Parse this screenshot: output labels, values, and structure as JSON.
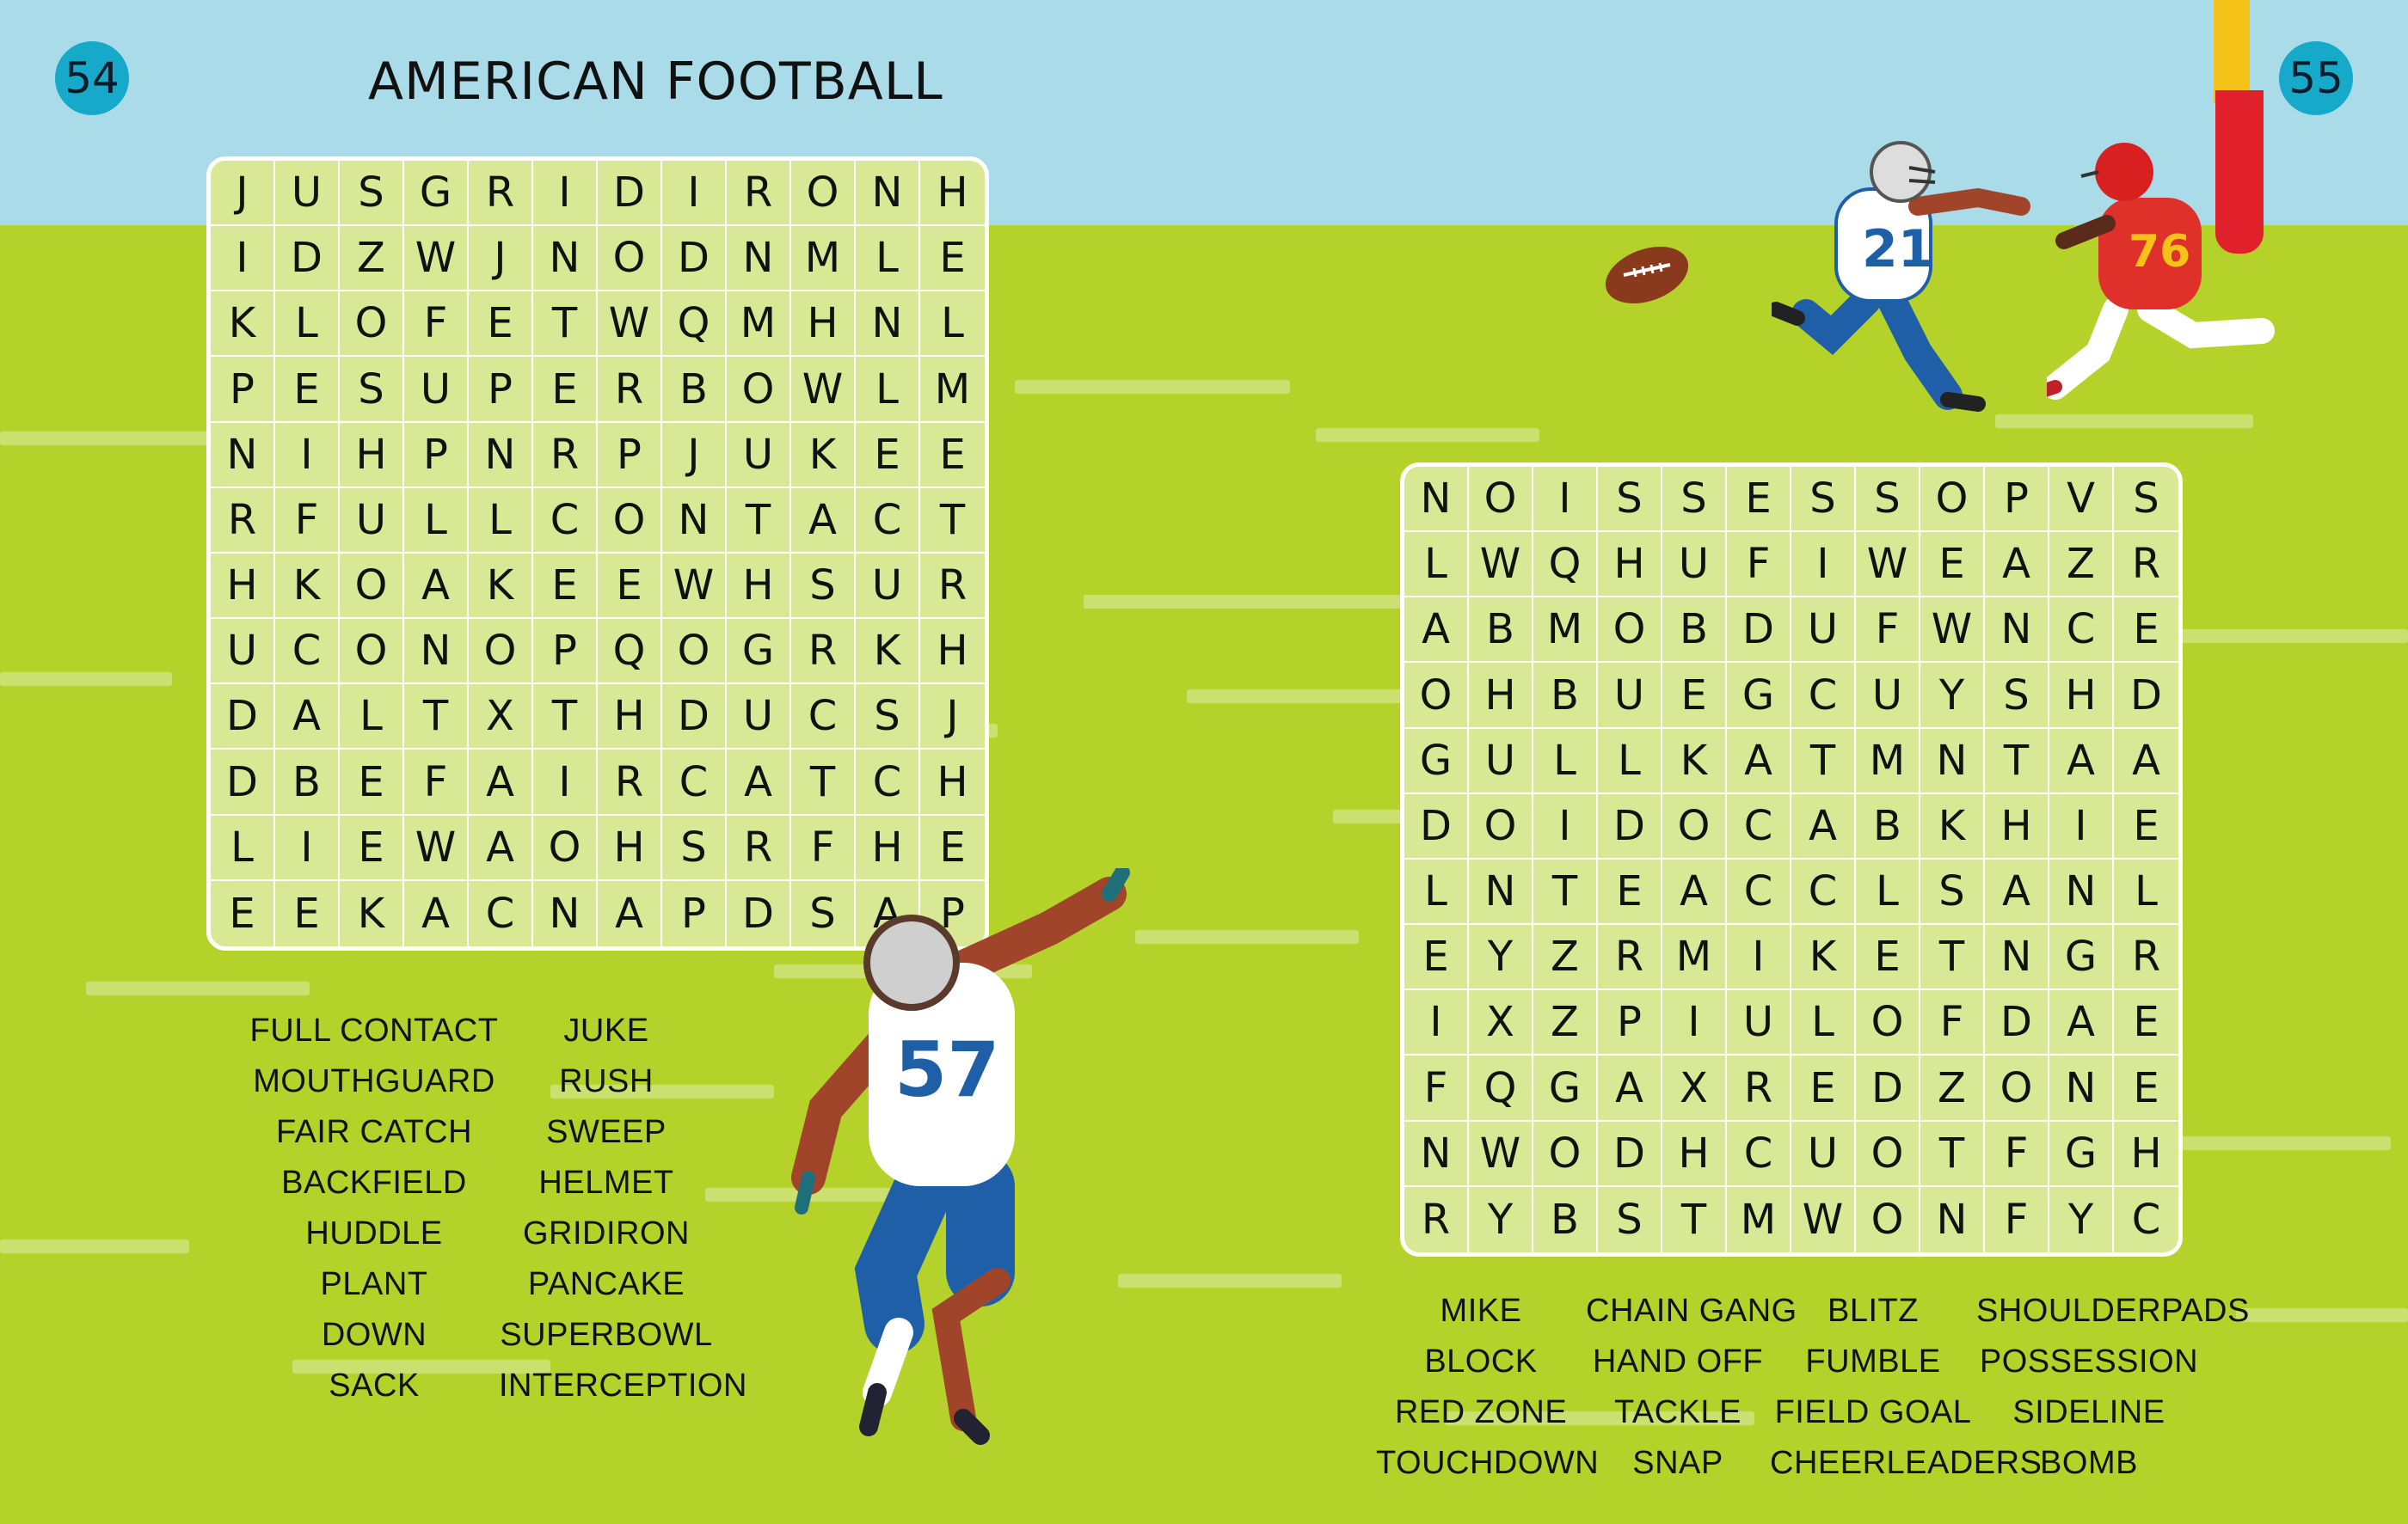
{
  "page_left": {
    "number": "54",
    "title": "AMERICAN FOOTBALL",
    "grid": [
      "JUSGRIDIRONH",
      "IDZWJNODNMLE",
      "KLOFETWQMHNL",
      "PESUPERBOWLM",
      "NIHPNRPJUKEE",
      "RFULLCONTACT",
      "HKOAKEEWHSUR",
      "UCONOPQOGRKH",
      "DALTXTHDUCSJ",
      "DBEFAIRCATCH",
      "LIEWAOHSRFHE",
      "EEKACNAPDSAP"
    ],
    "words": [
      [
        "FULL CONTACT",
        "JUKE"
      ],
      [
        "MOUTHGUARD",
        "RUSH"
      ],
      [
        "FAIR CATCH",
        "SWEEP"
      ],
      [
        "BACKFIELD",
        "HELMET"
      ],
      [
        "HUDDLE",
        "GRIDIRON"
      ],
      [
        "PLANT",
        "PANCAKE"
      ],
      [
        "DOWN",
        "SUPERBOWL"
      ],
      [
        "SACK",
        "INTERCEPTION"
      ]
    ]
  },
  "page_right": {
    "number": "55",
    "grid": [
      "NOISSESSOPVS",
      "LWQHUFIWEAZR",
      "ABMOBDUFWNCE",
      "OHBUEGCUYSHD",
      "GULLKATMNTAA",
      "DOIDOCABKHIE",
      "LNTEACCLSANL",
      "EYZRMIKETNGR",
      "IXZPIULOFDAE",
      "FQGAXREDZONE",
      "NWODHCUOTFGH",
      "RYBSTMWONFYC"
    ],
    "words": [
      [
        "MIKE",
        "CHAIN GANG",
        "BLITZ",
        "SHOULDERPADS"
      ],
      [
        "BLOCK",
        "HAND OFF",
        "FUMBLE",
        "POSSESSION"
      ],
      [
        "RED ZONE",
        "TACKLE",
        "FIELD GOAL",
        "SIDELINE"
      ],
      [
        "TOUCHDOWN",
        "SNAP",
        "CHEERLEADERS",
        "BOMB"
      ]
    ]
  },
  "illustration": {
    "jersey_numbers": [
      "21",
      "76",
      "57"
    ],
    "colors": {
      "sky": "#a9dce8",
      "field": "#b5d22a",
      "grid_bg": "#d9e895",
      "badge": "#17a9c9",
      "post_red": "#e0202a",
      "post_yellow": "#f5c21a"
    }
  }
}
